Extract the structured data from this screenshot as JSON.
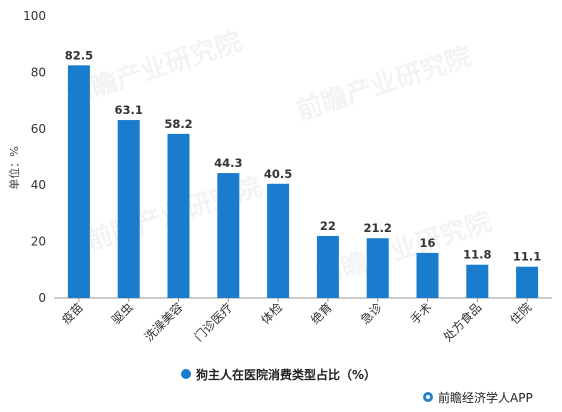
{
  "chart_data": {
    "type": "bar",
    "categories": [
      "疫苗",
      "驱虫",
      "洗澡美容",
      "门诊医疗",
      "体检",
      "绝育",
      "急诊",
      "手术",
      "处方食品",
      "住院"
    ],
    "series": [
      {
        "name": "狗主人在医院消费类型占比（%）",
        "values": [
          82.5,
          63.1,
          58.2,
          44.3,
          40.5,
          22,
          21.2,
          16,
          11.8,
          11.1
        ],
        "color": "#1a7ccc"
      }
    ],
    "ylabel": "单位：%",
    "ylim": [
      0,
      100
    ],
    "yticks": [
      0,
      20,
      40,
      60,
      80,
      100
    ],
    "grid": false,
    "legend": "bottom-center"
  },
  "watermark": "前瞻产业研究院",
  "credit": "前瞻经济学人APP",
  "colors": {
    "bar": "#1a7ccc",
    "axis": "#999999"
  }
}
